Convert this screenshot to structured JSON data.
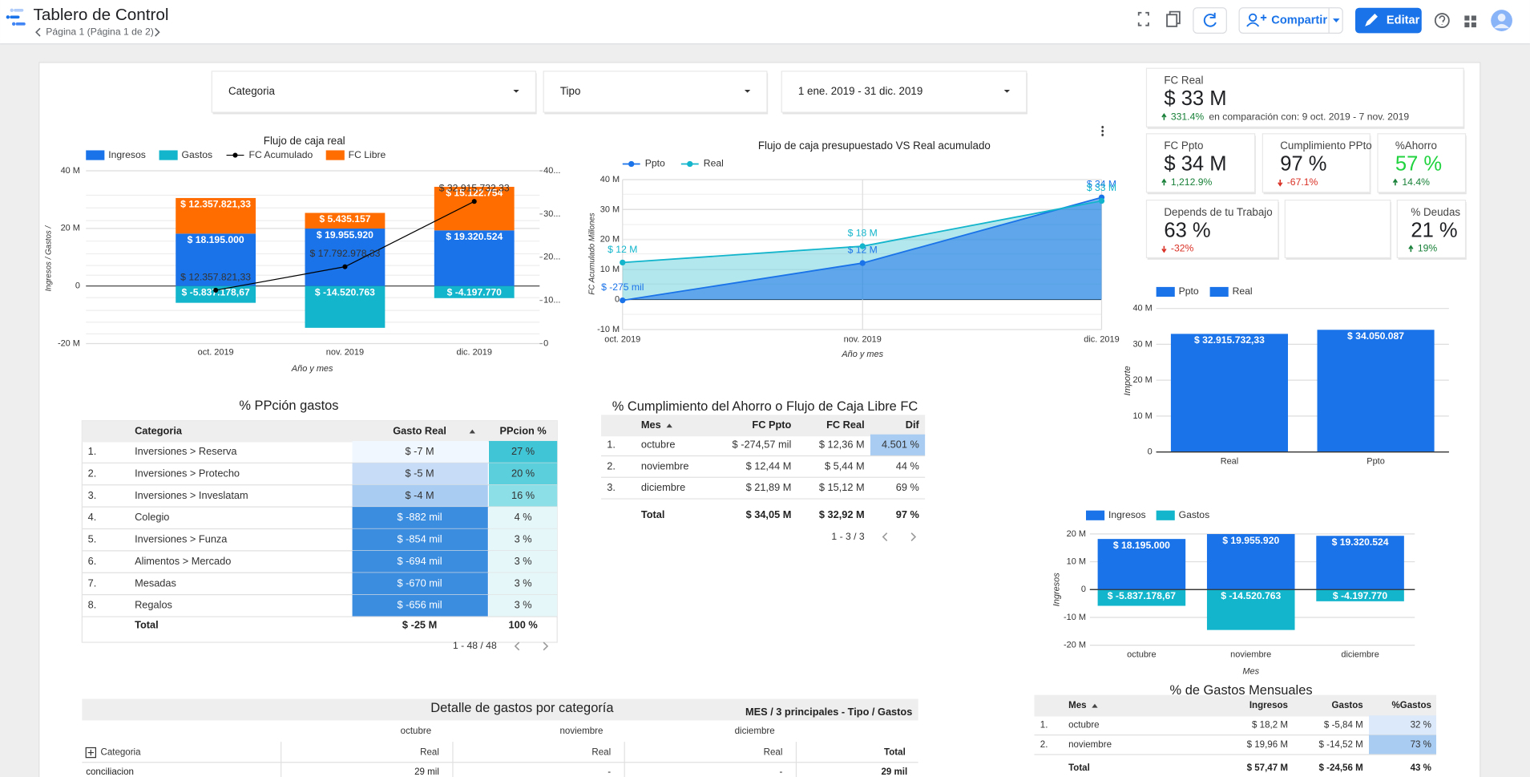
{
  "header": {
    "title": "Tablero de Control",
    "page": "Página 1 (Página 1 de 2)",
    "share": "Compartir",
    "edit": "Editar"
  },
  "filters": [
    "Categoria",
    "Tipo",
    "1 ene. 2019 - 31 dic. 2019"
  ],
  "scorecards": [
    {
      "label": "FC Real",
      "value": "$ 33 M",
      "delta": "331.4%",
      "trend": "up",
      "note": "en comparación con: 9 oct. 2019 - 7 nov. 2019"
    },
    {
      "label": "FC Ppto",
      "value": "$ 34 M",
      "delta": "1,212.9%",
      "trend": "up"
    },
    {
      "label": "Cumplimiento PPto",
      "value": "97 %",
      "delta": "-67.1%",
      "trend": "down"
    },
    {
      "label": "%Ahorro",
      "value": "57 %",
      "delta": "14.4%",
      "trend": "up"
    },
    {
      "label": "Depends de tu Trabajo",
      "value": "63 %",
      "delta": "-32%",
      "trend": "down"
    },
    {
      "label": "% Deudas",
      "value": "21 %",
      "delta": "19%",
      "trend": "up"
    }
  ],
  "charts": [
    {
      "type": "combo",
      "title": "Flujo de caja real",
      "categories": [
        "oct. 2019",
        "nov. 2019",
        "dic. 2019"
      ],
      "x_label": "Año y mes",
      "y_label": "Ingresos / Gastos /",
      "series": [
        {
          "name": "Ingresos",
          "color": "#1a73e8",
          "values": [
            18195000,
            19955920,
            19320524
          ],
          "value_labels": [
            "$ 18.195.000",
            "$ 19.955.920",
            "$ 19.320.524"
          ]
        },
        {
          "name": "Gastos",
          "color": "#12b5cb",
          "values": [
            -5837178.67,
            -14520763,
            -4197770
          ],
          "value_labels": [
            "$ -5.837.178,67",
            "$ -14.520.763",
            "$ -4.197.770"
          ]
        },
        {
          "name": "FC Acumulado",
          "color": "#000000",
          "type": "line",
          "axis": "y2",
          "values": [
            12357821.33,
            17792978.33,
            32915732.33
          ],
          "value_labels": [
            "$ 12.357.821,33",
            "$ 17.792.978,33",
            "$ 32.915.732,33"
          ]
        },
        {
          "name": "FC Libre",
          "color": "#ff6d01",
          "values": [
            12357821.33,
            5435157,
            15122754
          ],
          "value_labels": [
            "$ 12.357.821,33",
            "$ 5.435.157",
            "$ 15.122.754"
          ]
        }
      ],
      "ylim": [
        -20000000,
        40000000
      ],
      "yticks": [
        {
          "value": -20000000,
          "label": "-20 M"
        },
        0,
        {
          "value": 20000000,
          "label": "20 M"
        },
        {
          "value": 40000000,
          "label": "40 M"
        }
      ],
      "y2lim": [
        0,
        40000000
      ],
      "y2ticks": [
        0,
        {
          "value": 10000000,
          "label": "10..."
        },
        {
          "value": 20000000,
          "label": "20..."
        },
        {
          "value": 30000000,
          "label": "30..."
        },
        {
          "value": 40000000,
          "label": "40..."
        }
      ],
      "legend": "top-left"
    },
    {
      "type": "area",
      "title": "Flujo de caja presupuestado VS Real acumulado",
      "categories": [
        "oct. 2019",
        "nov. 2019",
        "dic. 2019"
      ],
      "x_label": "Año y mes",
      "y_label": "FC Acumulado Millones",
      "series": [
        {
          "name": "Ppto",
          "color": "#1a73e8",
          "values": [
            -274570,
            12165430,
            34050087
          ],
          "value_labels": [
            "$ -275 mil",
            "$ 12 M",
            "$ 34 M"
          ]
        },
        {
          "name": "Real",
          "color": "#12b5cb",
          "values": [
            12357821.33,
            17792978.33,
            32915732.33
          ],
          "value_labels": [
            "$ 12 M",
            "$ 18 M",
            "$ 33 M"
          ]
        }
      ],
      "ylim": [
        -10000000,
        40000000
      ],
      "yticks": [
        {
          "value": -10000000,
          "label": "-10 M"
        },
        0,
        {
          "value": 10000000,
          "label": "10 M"
        },
        {
          "value": 20000000,
          "label": "20 M"
        },
        {
          "value": 30000000,
          "label": "30 M"
        },
        {
          "value": 40000000,
          "label": "40 M"
        }
      ],
      "legend": "top-left"
    },
    {
      "type": "bar",
      "categories": [
        "Real",
        "Ppto"
      ],
      "y_label": "Importe",
      "series": [
        {
          "name": "Ppto",
          "color": "#1a73e8",
          "values": [
            null,
            34050087
          ],
          "value_labels": [
            null,
            "$ 34.050.087"
          ]
        },
        {
          "name": "Real",
          "color": "#1a73e8",
          "values": [
            32915732.33,
            null
          ],
          "value_labels": [
            "$ 32.915.732,33",
            null
          ]
        }
      ],
      "ylim": [
        0,
        40000000
      ],
      "yticks": [
        0,
        {
          "value": 10000000,
          "label": "10 M"
        },
        {
          "value": 20000000,
          "label": "20 M"
        },
        {
          "value": 30000000,
          "label": "30 M"
        },
        {
          "value": 40000000,
          "label": "40 M"
        }
      ],
      "legend": "top-left"
    },
    {
      "type": "bar",
      "categories": [
        "octubre",
        "noviembre",
        "diciembre"
      ],
      "x_label": "Mes",
      "y_label": "Ingresos",
      "series": [
        {
          "name": "Ingresos",
          "color": "#1a73e8",
          "values": [
            18195000,
            19955920,
            19320524
          ],
          "value_labels": [
            "$ 18.195.000",
            "$ 19.955.920",
            "$ 19.320.524"
          ]
        },
        {
          "name": "Gastos",
          "color": "#12b5cb",
          "values": [
            -5837178.67,
            -14520763,
            -4197770
          ],
          "value_labels": [
            "$ -5.837.178,67",
            "$ -14.520.763",
            "$ -4.197.770"
          ]
        }
      ],
      "ylim": [
        -20000000,
        20000000
      ],
      "yticks": [
        {
          "value": -20000000,
          "label": "-20 M"
        },
        {
          "value": -10000000,
          "label": "-10 M"
        },
        0,
        {
          "value": 10000000,
          "label": "10 M"
        },
        {
          "value": 20000000,
          "label": "20 M"
        }
      ],
      "legend": "top-left"
    }
  ],
  "tables": [
    {
      "title": "% PPción gastos",
      "columns": [
        "Categoria",
        "Gasto Real",
        "PPcion %"
      ],
      "rows": [
        [
          "1.",
          "Inversiones > Reserva",
          "$ -7 M",
          "27 %"
        ],
        [
          "2.",
          "Inversiones > Protecho",
          "$ -5 M",
          "20 %"
        ],
        [
          "3.",
          "Inversiones > Inveslatam",
          "$ -4 M",
          "16 %"
        ],
        [
          "4.",
          "Colegio",
          "$ -882 mil",
          "4 %"
        ],
        [
          "5.",
          "Inversiones > Funza",
          "$ -854 mil",
          "3 %"
        ],
        [
          "6.",
          "Alimentos > Mercado",
          "$ -694 mil",
          "3 %"
        ],
        [
          "7.",
          "Mesadas",
          "$ -670 mil",
          "3 %"
        ],
        [
          "8.",
          "Regalos",
          "$ -656 mil",
          "3 %"
        ]
      ],
      "total": [
        "Total",
        "$ -25 M",
        "100 %"
      ],
      "pagination": "1 - 48 / 48"
    },
    {
      "title": "% Cumplimiento del Ahorro o Flujo de Caja Libre FC",
      "columns": [
        "Mes",
        "FC Ppto",
        "FC Real",
        "Dif"
      ],
      "rows": [
        [
          "1.",
          "octubre",
          "$ -274,57 mil",
          "$ 12,36 M",
          "4.501 %"
        ],
        [
          "2.",
          "noviembre",
          "$ 12,44 M",
          "$ 5,44 M",
          "44 %"
        ],
        [
          "3.",
          "diciembre",
          "$ 21,89 M",
          "$ 15,12 M",
          "69 %"
        ]
      ],
      "total": [
        "Total",
        "$ 34,05 M",
        "$ 32,92 M",
        "97 %"
      ],
      "pagination": "1 - 3 / 3"
    },
    {
      "title": "% de Gastos Mensuales",
      "columns": [
        "Mes",
        "Ingresos",
        "Gastos",
        "%Gastos"
      ],
      "rows": [
        [
          "1.",
          "octubre",
          "$ 18,2 M",
          "$ -5,84 M",
          "32 %"
        ],
        [
          "2.",
          "noviembre",
          "$ 19,96 M",
          "$ -14,52 M",
          "73 %"
        ]
      ],
      "total": [
        "Total",
        "$ 57,47 M",
        "$ -24,56 M",
        "43 %"
      ]
    }
  ],
  "pivot": {
    "title": "Detalle de gastos por categoría",
    "header": "MES / 3 principales - Tipo / Gastos",
    "months": [
      "octubre",
      "noviembre",
      "diciembre"
    ],
    "measures": [
      "Real",
      "Real",
      "Real"
    ],
    "total": "Total",
    "row_header": "Categoria",
    "rows": [
      [
        "conciliacion",
        "29 mil",
        "-",
        "-",
        "29 mil"
      ]
    ]
  }
}
